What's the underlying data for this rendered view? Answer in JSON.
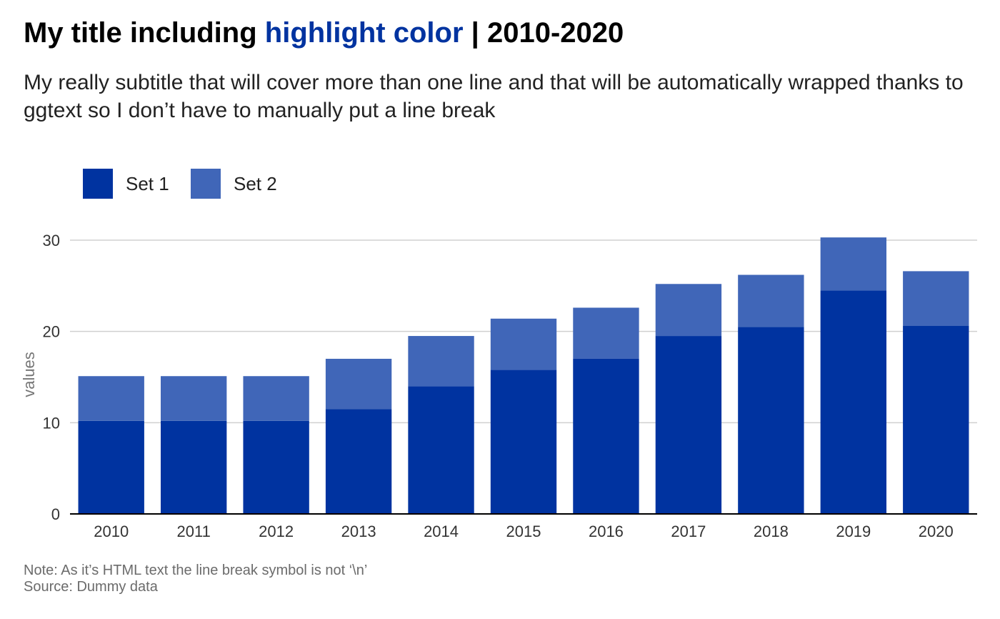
{
  "header": {
    "title_prefix": "My title including",
    "title_highlight": "highlight color",
    "title_suffix": "| 2010-2020",
    "subtitle": "My really subtitle that will cover more than one line and that will be automatically wrapped thanks to ggtext so I don’t have to manually put a line break"
  },
  "footer": {
    "note": "Note: As it’s HTML text the line break symbol is not ‘\\n’",
    "source": "Source: Dummy data"
  },
  "colors": {
    "set1": "#0033a0",
    "set2": "#4066b8",
    "highlight": "#0033a0",
    "grid": "#d0d0d0",
    "axis": "#000000"
  },
  "chart_data": {
    "type": "bar",
    "stacked": true,
    "title": "My title including highlight color | 2010-2020",
    "subtitle": "My really subtitle that will cover more than one line and that will be automatically wrapped thanks to ggtext so I don’t have to manually put a line break",
    "xlabel": "",
    "ylabel": "values",
    "ylim": [
      0,
      30
    ],
    "yticks": [
      0,
      10,
      20,
      30
    ],
    "grid": "horizontal",
    "legend_position": "top-left",
    "categories": [
      "2010",
      "2011",
      "2012",
      "2013",
      "2014",
      "2015",
      "2016",
      "2017",
      "2018",
      "2019",
      "2020"
    ],
    "series": [
      {
        "name": "Set 1",
        "color": "#0033a0",
        "values": [
          10.2,
          10.2,
          10.2,
          11.5,
          14,
          15.8,
          17,
          19.5,
          20.5,
          24.5,
          20.6
        ]
      },
      {
        "name": "Set 2",
        "color": "#4066b8",
        "values": [
          4.9,
          4.9,
          4.9,
          5.5,
          5.5,
          5.6,
          5.6,
          5.7,
          5.7,
          5.8,
          6
        ]
      }
    ]
  }
}
